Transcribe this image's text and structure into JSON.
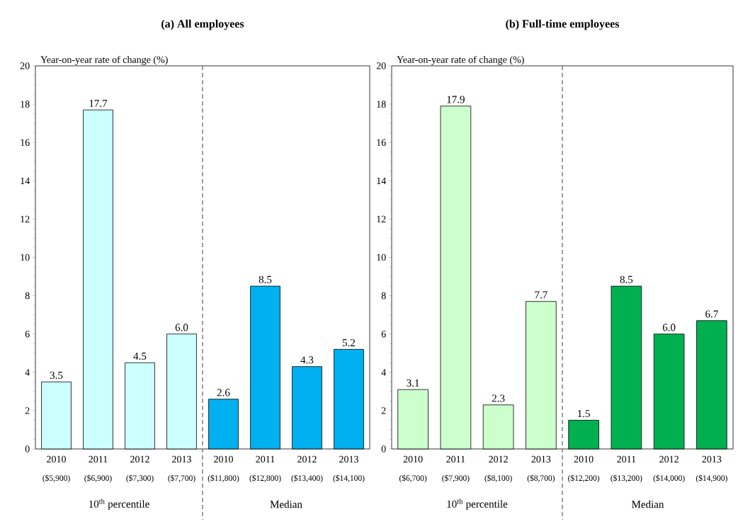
{
  "chart_data": [
    {
      "type": "bar",
      "title": "(a) All employees",
      "ylabel": "Year-on-year rate of change (%)",
      "categories": [
        "2010",
        "2011",
        "2012",
        "2013",
        "2010",
        "2011",
        "2012",
        "2013"
      ],
      "series": [
        {
          "color": "#ccffff",
          "values": [
            3.5,
            17.7,
            4.5,
            6.0,
            null,
            null,
            null,
            null
          ],
          "value_labels": [
            "3.5",
            "17.7",
            "4.5",
            "6.0",
            null,
            null,
            null,
            null
          ]
        },
        {
          "color": "#00b0f0",
          "values": [
            null,
            null,
            null,
            null,
            2.6,
            8.5,
            4.3,
            5.2
          ],
          "value_labels": [
            null,
            null,
            null,
            null,
            "2.6",
            "8.5",
            "4.3",
            "5.2"
          ]
        }
      ],
      "annotations": [
        "($5,900)",
        "($6,900)",
        "($7,300)",
        "($7,700)",
        "($11,800)",
        "($12,800)",
        "($13,400)",
        "($14,100)",
        "10$^{th}$ percentile",
        "Median"
      ],
      "ylim": [
        0,
        20
      ],
      "yticks": [
        0,
        2,
        4,
        6,
        8,
        10,
        12,
        14,
        16,
        18,
        20
      ]
    },
    {
      "type": "bar",
      "title": "(b) Full-time employees",
      "ylabel": "Year-on-year rate of change (%)",
      "categories": [
        "2010",
        "2011",
        "2012",
        "2013",
        "2010",
        "2011",
        "2012",
        "2013"
      ],
      "series": [
        {
          "color": "#ccffcc",
          "values": [
            3.1,
            17.9,
            2.3,
            7.7,
            null,
            null,
            null,
            null
          ],
          "value_labels": [
            "3.1",
            "17.9",
            "2.3",
            "7.7",
            null,
            null,
            null,
            null
          ]
        },
        {
          "color": "#00b050",
          "values": [
            null,
            null,
            null,
            null,
            1.5,
            8.5,
            6.0,
            6.7
          ],
          "value_labels": [
            null,
            null,
            null,
            null,
            "1.5",
            "8.5",
            "6.0",
            "6.7"
          ]
        }
      ],
      "annotations": [
        "($6,700)",
        "($7,900)",
        "($8,100)",
        "($8,700)",
        "($12,200)",
        "($13,200)",
        "($14,000)",
        "($14,900)",
        "10$^{th}$ percentile",
        "Median"
      ],
      "ylim": [
        0,
        20
      ],
      "yticks": [
        0,
        2,
        4,
        6,
        8,
        10,
        12,
        14,
        16,
        18,
        20
      ]
    }
  ]
}
